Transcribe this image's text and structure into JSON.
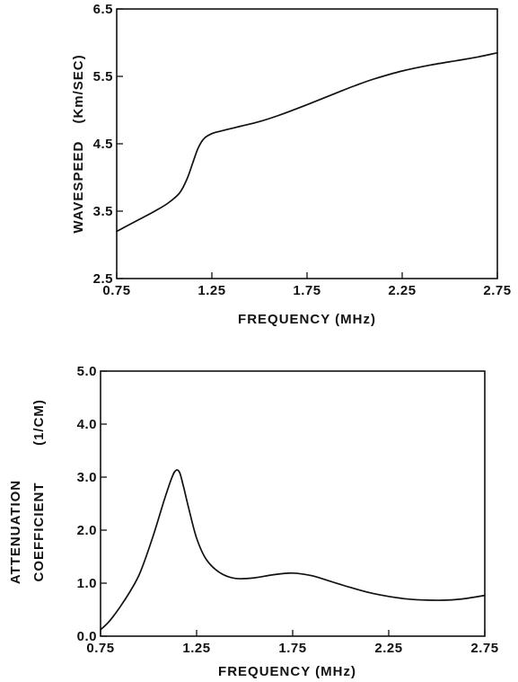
{
  "chart_data": [
    {
      "type": "line",
      "title": "",
      "xlabel": "FREQUENCY (MHz)",
      "ylabel": "WAVESPEED (Km/SEC)",
      "ylabel_parts": [
        "WAVESPEED",
        "(Km/SEC)"
      ],
      "xlim": [
        0.75,
        2.75
      ],
      "ylim": [
        2.5,
        6.5
      ],
      "x_ticks": [
        0.75,
        1.25,
        1.75,
        2.25,
        2.75
      ],
      "x_tick_labels": [
        "0.75",
        "1.25",
        "1.75",
        "2.25",
        "2.75"
      ],
      "y_ticks": [
        2.5,
        3.5,
        4.5,
        5.5,
        6.5
      ],
      "y_tick_labels": [
        "2.5",
        "3.5",
        "4.5",
        "5.5",
        "6.5"
      ],
      "grid": false,
      "series": [
        {
          "x": [
            0.75,
            0.85,
            0.95,
            1.02,
            1.08,
            1.12,
            1.15,
            1.18,
            1.21,
            1.25,
            1.3,
            1.4,
            1.5,
            1.6,
            1.75,
            1.9,
            2.0,
            2.1,
            2.25,
            2.4,
            2.55,
            2.65,
            2.75
          ],
          "y": [
            3.2,
            3.35,
            3.5,
            3.62,
            3.77,
            3.98,
            4.22,
            4.45,
            4.58,
            4.65,
            4.69,
            4.76,
            4.83,
            4.92,
            5.08,
            5.25,
            5.36,
            5.46,
            5.58,
            5.67,
            5.74,
            5.79,
            5.85
          ]
        }
      ]
    },
    {
      "type": "line",
      "title": "",
      "xlabel": "FREQUENCY (MHz)",
      "ylabel": "ATTENUATION COEFFICIENT (1/CM)",
      "ylabel_parts": [
        "ATTENUATION",
        "COEFFICIENT",
        "(1/CM)"
      ],
      "xlim": [
        0.75,
        2.75
      ],
      "ylim": [
        0.0,
        5.0
      ],
      "x_ticks": [
        0.75,
        1.25,
        1.75,
        2.25,
        2.75
      ],
      "x_tick_labels": [
        "0.75",
        "1.25",
        "1.75",
        "2.25",
        "2.75"
      ],
      "y_ticks": [
        0.0,
        1.0,
        2.0,
        3.0,
        4.0,
        5.0
      ],
      "y_tick_labels": [
        "0.0",
        "1.0",
        "2.0",
        "3.0",
        "4.0",
        "5.0"
      ],
      "grid": false,
      "series": [
        {
          "x": [
            0.75,
            0.8,
            0.87,
            0.95,
            1.02,
            1.08,
            1.12,
            1.14,
            1.16,
            1.18,
            1.21,
            1.25,
            1.3,
            1.37,
            1.45,
            1.55,
            1.65,
            1.75,
            1.85,
            1.95,
            2.05,
            2.15,
            2.25,
            2.35,
            2.45,
            2.55,
            2.65,
            2.75
          ],
          "y": [
            0.12,
            0.3,
            0.65,
            1.15,
            1.85,
            2.55,
            2.98,
            3.12,
            3.1,
            2.85,
            2.4,
            1.85,
            1.45,
            1.2,
            1.09,
            1.1,
            1.16,
            1.19,
            1.14,
            1.03,
            0.92,
            0.82,
            0.75,
            0.7,
            0.68,
            0.68,
            0.71,
            0.77
          ]
        }
      ]
    }
  ]
}
